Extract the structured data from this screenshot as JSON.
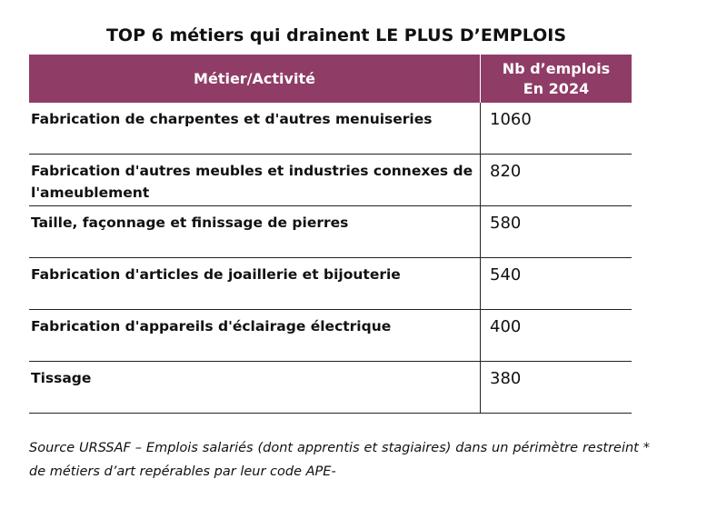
{
  "title": "TOP 6 métiers qui drainent LE PLUS D’EMPLOIS",
  "table": {
    "header": [
      "Métier/Activité",
      [
        "Nb d’emplois",
        "En 2024"
      ]
    ],
    "rows": [
      [
        "Fabrication de charpentes et d'autres menuiseries",
        1060
      ],
      [
        "Fabrication d'autres meubles et industries connexes de l'ameublement",
        820
      ],
      [
        "Taille, façonnage et finissage de pierres",
        580
      ],
      [
        "Fabrication d'articles de joaillerie et bijouterie",
        540
      ],
      [
        "Fabrication d'appareils d'éclairage électrique",
        400
      ],
      [
        "Tissage",
        380
      ]
    ]
  },
  "source": "Source URSSAF – Emplois salariés (dont apprentis et stagiaires) dans un périmètre restreint * de métiers d’art repérables par leur code APE-"
}
